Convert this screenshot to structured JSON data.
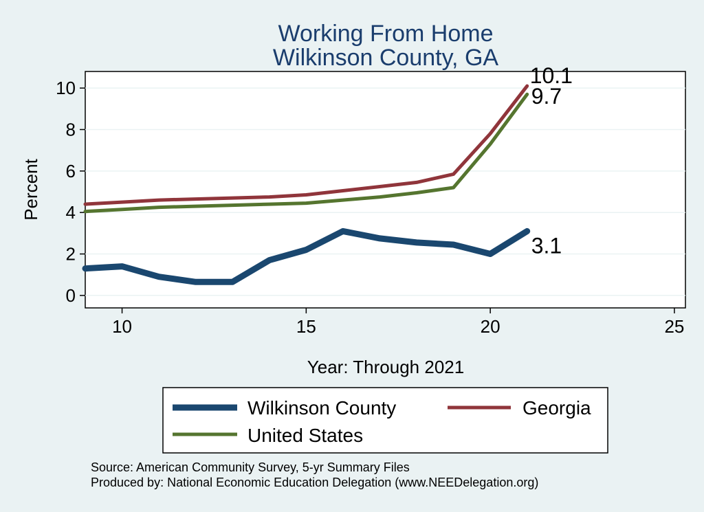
{
  "chart_data": {
    "type": "line",
    "title": [
      "Working From Home",
      "Wilkinson County, GA"
    ],
    "xlabel": "Year: Through 2021",
    "ylabel": "Percent",
    "xlim": [
      9,
      25.3
    ],
    "ylim": [
      -0.6,
      10.8
    ],
    "xticks": [
      10,
      15,
      20,
      25
    ],
    "yticks": [
      0,
      2,
      4,
      6,
      8,
      10
    ],
    "grid": true,
    "legend_position": "bottom",
    "series": [
      {
        "name": "Wilkinson County",
        "color": "#1a476f",
        "x": [
          9,
          10,
          11,
          12,
          13,
          14,
          15,
          16,
          17,
          18,
          19,
          20,
          21
        ],
        "values": [
          1.3,
          1.4,
          0.9,
          0.65,
          0.65,
          1.7,
          2.2,
          3.1,
          2.75,
          2.55,
          2.45,
          2.0,
          3.1
        ],
        "end_label": "3.1"
      },
      {
        "name": "Georgia",
        "color": "#90353b",
        "x": [
          9,
          10,
          11,
          12,
          13,
          14,
          15,
          16,
          17,
          18,
          19,
          20,
          21
        ],
        "values": [
          4.4,
          4.5,
          4.6,
          4.65,
          4.7,
          4.75,
          4.85,
          5.05,
          5.25,
          5.45,
          5.85,
          7.8,
          10.1
        ],
        "end_label": "10.1"
      },
      {
        "name": "United States",
        "color": "#55752f",
        "x": [
          9,
          10,
          11,
          12,
          13,
          14,
          15,
          16,
          17,
          18,
          19,
          20,
          21
        ],
        "values": [
          4.05,
          4.15,
          4.25,
          4.3,
          4.35,
          4.4,
          4.45,
          4.6,
          4.75,
          4.95,
          5.2,
          7.3,
          9.7
        ],
        "end_label": "9.7"
      }
    ]
  },
  "footnotes": [
    "Source: American Community Survey, 5-yr Summary Files",
    "Produced by: National Economic Education Delegation (www.NEEDelegation.org)"
  ]
}
